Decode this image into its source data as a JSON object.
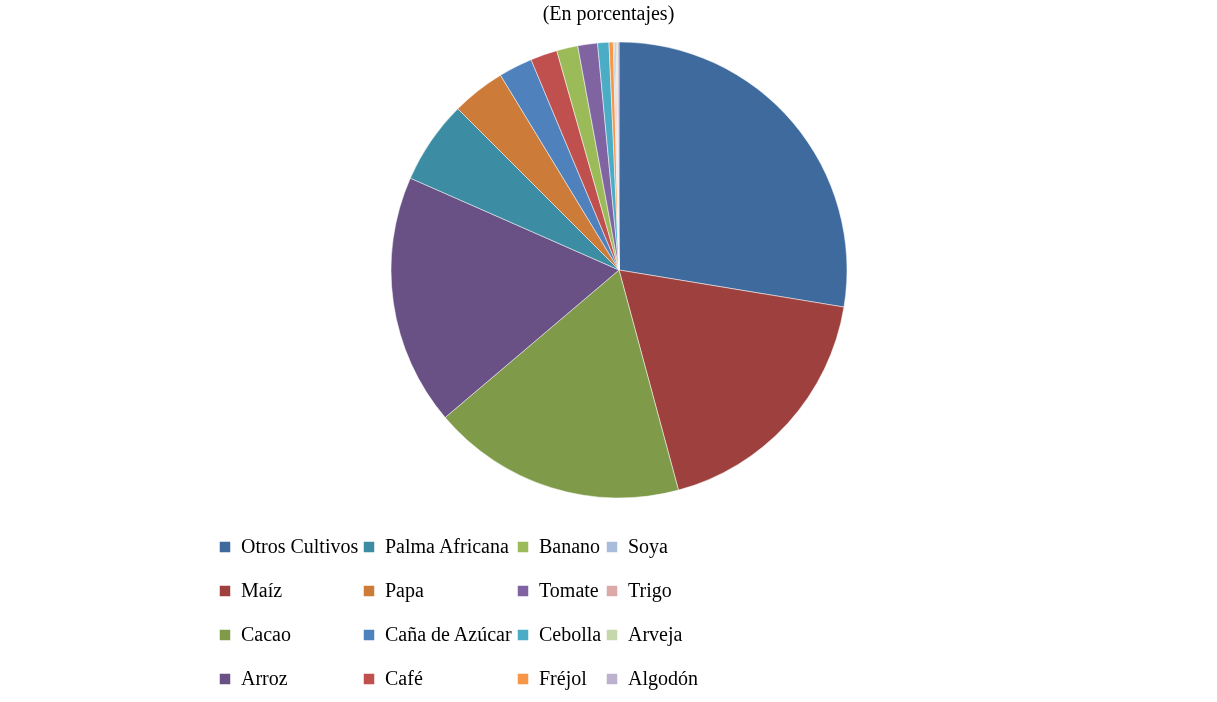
{
  "chart_data": {
    "type": "pie",
    "title": "(En porcentajes)",
    "categories": [
      "Otros Cultivos",
      "Maíz",
      "Cacao",
      "Arroz",
      "Palma Africana",
      "Papa",
      "Caña de Azúcar",
      "Café",
      "Banano",
      "Tomate",
      "Cebolla",
      "Fréjol",
      "Soya",
      "Trigo",
      "Arveja",
      "Algodón"
    ],
    "values": [
      27.6,
      18.2,
      18.0,
      17.8,
      5.9,
      3.8,
      2.4,
      1.9,
      1.5,
      1.4,
      0.8,
      0.3,
      0.1,
      0.1,
      0.1,
      0.1
    ],
    "colors": [
      "#3f6a9e",
      "#9e403d",
      "#7f9a48",
      "#695185",
      "#3c8da3",
      "#cc7b38",
      "#4f81bd",
      "#c0504d",
      "#9bbb59",
      "#8064a2",
      "#4bacc6",
      "#f79646",
      "#a9bcdb",
      "#dca9a8",
      "#c6d7ac",
      "#bcb1ce"
    ],
    "legend": "bottom"
  }
}
